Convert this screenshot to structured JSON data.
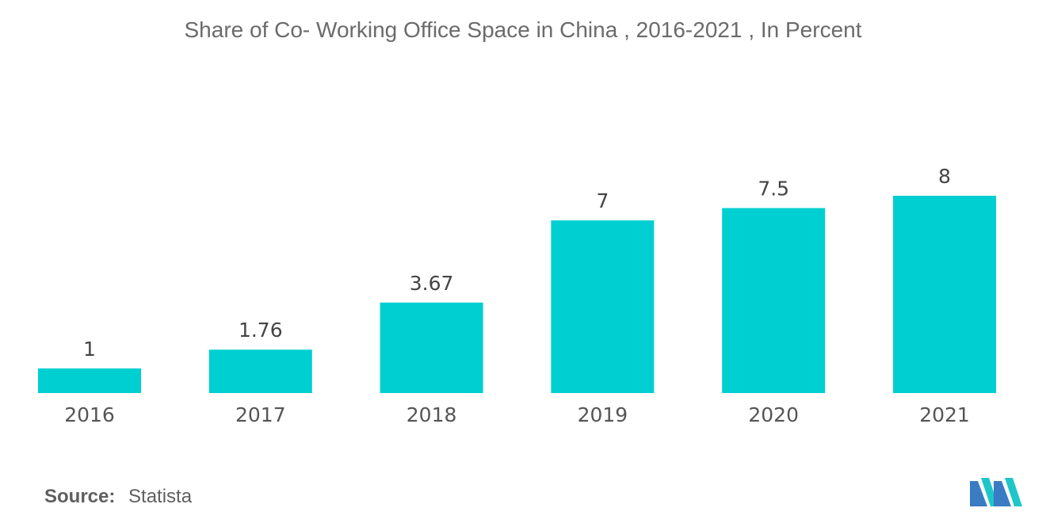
{
  "chart_data": {
    "type": "bar",
    "title": "Share of Co- Working Office Space in China , 2016-2021 , In Percent",
    "categories": [
      "2016",
      "2017",
      "2018",
      "2019",
      "2020",
      "2021"
    ],
    "values": [
      1,
      1.76,
      3.67,
      7,
      7.5,
      8
    ],
    "value_labels": [
      "1",
      "1.76",
      "3.67",
      "7",
      "7.5",
      "8"
    ],
    "xlabel": "",
    "ylabel": "",
    "ylim": [
      0,
      8
    ],
    "grid": false,
    "legend": "none",
    "bar_color": "#00cfd1"
  },
  "source": {
    "label": "Source:",
    "value": "Statista"
  },
  "logo": {
    "icon": "mordor-intelligence-logo",
    "colors": [
      "#3a7cc4",
      "#1ec6c9"
    ]
  }
}
